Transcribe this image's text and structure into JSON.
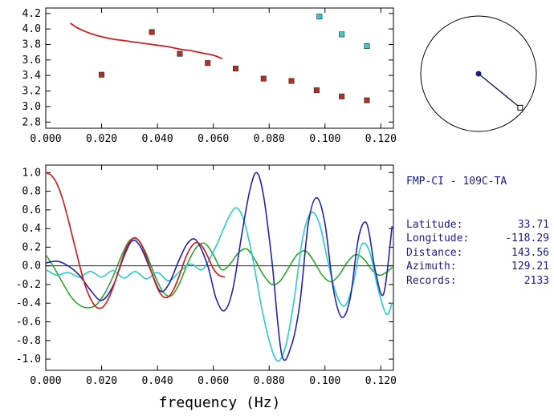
{
  "colors": {
    "red_line": "#cc2222",
    "red_marker": "#b23228",
    "cyan_marker": "#3cc8c8",
    "green_line": "#22a022",
    "blue_line": "#2222b4",
    "cyan_line": "#28cccc",
    "axis": "#000000",
    "navy_text": "#1b1b8c",
    "compass_line": "#10104a"
  },
  "info_panel": {
    "title": "FMP-CI - 109C-TA",
    "rows": [
      {
        "label": "Latitude:",
        "value": "33.71"
      },
      {
        "label": "Longitude:",
        "value": "-118.29"
      },
      {
        "label": "Distance:",
        "value": "143.56"
      },
      {
        "label": "Azimuth:",
        "value": "129.21"
      },
      {
        "label": "Records:",
        "value": "2133"
      }
    ]
  },
  "compass": {
    "azimuth_deg": 129.21
  },
  "chart_data": [
    {
      "id": "dispersion",
      "type": "scatter",
      "title": "",
      "xlabel": "",
      "ylabel": "",
      "xlim": [
        0,
        0.1245
      ],
      "ylim": [
        2.72,
        4.27
      ],
      "grid": false,
      "legend": "none",
      "xticks": [
        0.0,
        0.02,
        0.04,
        0.06,
        0.08,
        0.1,
        0.12
      ],
      "xtick_labels": [
        "0.000",
        "0.020",
        "0.040",
        "0.060",
        "0.080",
        "0.100",
        "0.120"
      ],
      "yticks": [
        2.8,
        3.0,
        3.2,
        3.4,
        3.6,
        3.8,
        4.0,
        4.2
      ],
      "ytick_labels": [
        "2.8",
        "3.0",
        "3.2",
        "3.4",
        "3.6",
        "3.8",
        "4.0",
        "4.2"
      ],
      "zero_line": false,
      "series": [
        {
          "name": "predicted-dispersion-curve",
          "type": "line",
          "color": "#cc2222",
          "width": 1.8,
          "points": [
            [
              0.009,
              4.07
            ],
            [
              0.011,
              4.02
            ],
            [
              0.014,
              3.97
            ],
            [
              0.017,
              3.93
            ],
            [
              0.02,
              3.9
            ],
            [
              0.024,
              3.87
            ],
            [
              0.028,
              3.85
            ],
            [
              0.032,
              3.83
            ],
            [
              0.036,
              3.81
            ],
            [
              0.04,
              3.79
            ],
            [
              0.044,
              3.77
            ],
            [
              0.048,
              3.74
            ],
            [
              0.052,
              3.72
            ],
            [
              0.056,
              3.69
            ],
            [
              0.059,
              3.67
            ],
            [
              0.061,
              3.65
            ],
            [
              0.063,
              3.62
            ]
          ]
        },
        {
          "name": "measured-phase-velocity-red",
          "type": "markers",
          "marker": "square",
          "color": "#b23228",
          "points": [
            [
              0.02,
              3.41
            ],
            [
              0.038,
              3.96
            ],
            [
              0.048,
              3.68
            ],
            [
              0.058,
              3.56
            ],
            [
              0.068,
              3.49
            ],
            [
              0.078,
              3.36
            ],
            [
              0.088,
              3.33
            ],
            [
              0.097,
              3.21
            ],
            [
              0.106,
              3.13
            ],
            [
              0.115,
              3.08
            ]
          ]
        },
        {
          "name": "measured-phase-velocity-cyan",
          "type": "markers",
          "marker": "square",
          "color": "#3cc8c8",
          "points": [
            [
              0.098,
              4.16
            ],
            [
              0.106,
              3.93
            ],
            [
              0.115,
              3.78
            ]
          ]
        }
      ]
    },
    {
      "id": "waveform",
      "type": "line",
      "title": "",
      "xlabel": "frequency (Hz)",
      "ylabel": "",
      "xlim": [
        0,
        0.1245
      ],
      "ylim": [
        -1.12,
        1.08
      ],
      "grid": false,
      "legend": "none",
      "xticks": [
        0.0,
        0.02,
        0.04,
        0.06,
        0.08,
        0.1,
        0.12
      ],
      "xtick_labels": [
        "0.000",
        "0.020",
        "0.040",
        "0.060",
        "0.080",
        "0.100",
        "0.120"
      ],
      "yticks": [
        -1.0,
        -0.8,
        -0.6,
        -0.4,
        -0.2,
        0.0,
        0.2,
        0.4,
        0.6,
        0.8,
        1.0
      ],
      "ytick_labels": [
        "-1.0",
        "-0.8",
        "-0.6",
        "-0.4",
        "-0.2",
        "0.0",
        "0.2",
        "0.4",
        "0.6",
        "0.8",
        "1.0"
      ],
      "zero_line": true,
      "series": [
        {
          "name": "correlation-green",
          "type": "line",
          "color": "#22a022",
          "width": 1.5,
          "points": [
            [
              0,
              0.12
            ],
            [
              0.003,
              -0.02
            ],
            [
              0.006,
              -0.18
            ],
            [
              0.009,
              -0.33
            ],
            [
              0.012,
              -0.42
            ],
            [
              0.015,
              -0.45
            ],
            [
              0.018,
              -0.42
            ],
            [
              0.021,
              -0.3
            ],
            [
              0.024,
              -0.12
            ],
            [
              0.027,
              0.1
            ],
            [
              0.03,
              0.27
            ],
            [
              0.033,
              0.28
            ],
            [
              0.036,
              0.13
            ],
            [
              0.039,
              -0.1
            ],
            [
              0.042,
              -0.28
            ],
            [
              0.045,
              -0.32
            ],
            [
              0.048,
              -0.18
            ],
            [
              0.051,
              0.04
            ],
            [
              0.054,
              0.2
            ],
            [
              0.057,
              0.24
            ],
            [
              0.06,
              0.12
            ],
            [
              0.063,
              -0.04
            ],
            [
              0.066,
              0.02
            ],
            [
              0.069,
              0.14
            ],
            [
              0.072,
              0.18
            ],
            [
              0.075,
              0.06
            ],
            [
              0.078,
              -0.1
            ],
            [
              0.081,
              -0.2
            ],
            [
              0.084,
              -0.16
            ],
            [
              0.087,
              -0.02
            ],
            [
              0.09,
              0.12
            ],
            [
              0.093,
              0.16
            ],
            [
              0.096,
              0.05
            ],
            [
              0.099,
              -0.1
            ],
            [
              0.102,
              -0.17
            ],
            [
              0.105,
              -0.1
            ],
            [
              0.108,
              0.04
            ],
            [
              0.111,
              0.12
            ],
            [
              0.114,
              0.07
            ],
            [
              0.117,
              -0.05
            ],
            [
              0.12,
              -0.1
            ],
            [
              0.124,
              -0.02
            ]
          ]
        },
        {
          "name": "correlation-cyan",
          "type": "line",
          "color": "#28cccc",
          "width": 1.6,
          "points": [
            [
              0,
              -0.04
            ],
            [
              0.004,
              -0.1
            ],
            [
              0.008,
              -0.07
            ],
            [
              0.012,
              -0.12
            ],
            [
              0.016,
              -0.06
            ],
            [
              0.02,
              -0.12
            ],
            [
              0.024,
              -0.05
            ],
            [
              0.028,
              -0.13
            ],
            [
              0.032,
              -0.06
            ],
            [
              0.036,
              -0.14
            ],
            [
              0.04,
              -0.07
            ],
            [
              0.044,
              -0.16
            ],
            [
              0.048,
              -0.06
            ],
            [
              0.052,
              0.02
            ],
            [
              0.056,
              -0.04
            ],
            [
              0.06,
              0.15
            ],
            [
              0.063,
              0.35
            ],
            [
              0.066,
              0.55
            ],
            [
              0.0685,
              0.62
            ],
            [
              0.071,
              0.48
            ],
            [
              0.074,
              0.1
            ],
            [
              0.077,
              -0.4
            ],
            [
              0.08,
              -0.8
            ],
            [
              0.083,
              -1.02
            ],
            [
              0.086,
              -0.85
            ],
            [
              0.089,
              -0.35
            ],
            [
              0.092,
              0.3
            ],
            [
              0.095,
              0.57
            ],
            [
              0.098,
              0.45
            ],
            [
              0.101,
              0.05
            ],
            [
              0.104,
              -0.3
            ],
            [
              0.107,
              -0.43
            ],
            [
              0.11,
              -0.2
            ],
            [
              0.113,
              0.22
            ],
            [
              0.116,
              0.15
            ],
            [
              0.119,
              -0.25
            ],
            [
              0.122,
              -0.52
            ],
            [
              0.124,
              -0.4
            ]
          ]
        },
        {
          "name": "correlation-blue",
          "type": "line",
          "color": "#2222b4",
          "width": 1.6,
          "points": [
            [
              0,
              0.03
            ],
            [
              0.004,
              0.05
            ],
            [
              0.008,
              0.0
            ],
            [
              0.012,
              -0.1
            ],
            [
              0.016,
              -0.26
            ],
            [
              0.02,
              -0.37
            ],
            [
              0.024,
              -0.22
            ],
            [
              0.028,
              0.1
            ],
            [
              0.031,
              0.27
            ],
            [
              0.034,
              0.2
            ],
            [
              0.038,
              -0.08
            ],
            [
              0.041,
              -0.27
            ],
            [
              0.044,
              -0.2
            ],
            [
              0.048,
              0.08
            ],
            [
              0.051,
              0.25
            ],
            [
              0.054,
              0.27
            ],
            [
              0.058,
              0.0
            ],
            [
              0.061,
              -0.35
            ],
            [
              0.064,
              -0.48
            ],
            [
              0.067,
              -0.25
            ],
            [
              0.07,
              0.3
            ],
            [
              0.073,
              0.8
            ],
            [
              0.0755,
              1.0
            ],
            [
              0.078,
              0.75
            ],
            [
              0.081,
              0.05
            ],
            [
              0.0845,
              -0.95
            ],
            [
              0.088,
              -0.85
            ],
            [
              0.091,
              -0.4
            ],
            [
              0.094,
              0.45
            ],
            [
              0.097,
              0.73
            ],
            [
              0.1,
              0.45
            ],
            [
              0.103,
              -0.25
            ],
            [
              0.106,
              -0.55
            ],
            [
              0.109,
              -0.35
            ],
            [
              0.112,
              0.3
            ],
            [
              0.115,
              0.45
            ],
            [
              0.118,
              -0.05
            ],
            [
              0.121,
              -0.3
            ],
            [
              0.124,
              0.42
            ]
          ]
        },
        {
          "name": "correlation-red",
          "type": "line",
          "color": "#cc2222",
          "width": 1.7,
          "points": [
            [
              0,
              1.0
            ],
            [
              0.002,
              0.97
            ],
            [
              0.004,
              0.88
            ],
            [
              0.006,
              0.72
            ],
            [
              0.008,
              0.5
            ],
            [
              0.01,
              0.26
            ],
            [
              0.012,
              0.02
            ],
            [
              0.014,
              -0.2
            ],
            [
              0.016,
              -0.35
            ],
            [
              0.018,
              -0.44
            ],
            [
              0.02,
              -0.45
            ],
            [
              0.022,
              -0.38
            ],
            [
              0.024,
              -0.24
            ],
            [
              0.026,
              -0.06
            ],
            [
              0.028,
              0.13
            ],
            [
              0.03,
              0.26
            ],
            [
              0.032,
              0.3
            ],
            [
              0.034,
              0.24
            ],
            [
              0.036,
              0.1
            ],
            [
              0.038,
              -0.08
            ],
            [
              0.04,
              -0.24
            ],
            [
              0.042,
              -0.33
            ],
            [
              0.044,
              -0.33
            ],
            [
              0.046,
              -0.24
            ],
            [
              0.048,
              -0.09
            ],
            [
              0.05,
              0.08
            ],
            [
              0.052,
              0.2
            ],
            [
              0.054,
              0.25
            ],
            [
              0.056,
              0.21
            ],
            [
              0.058,
              0.1
            ],
            [
              0.06,
              -0.03
            ],
            [
              0.062,
              -0.1
            ],
            [
              0.064,
              -0.12
            ]
          ]
        }
      ]
    }
  ]
}
